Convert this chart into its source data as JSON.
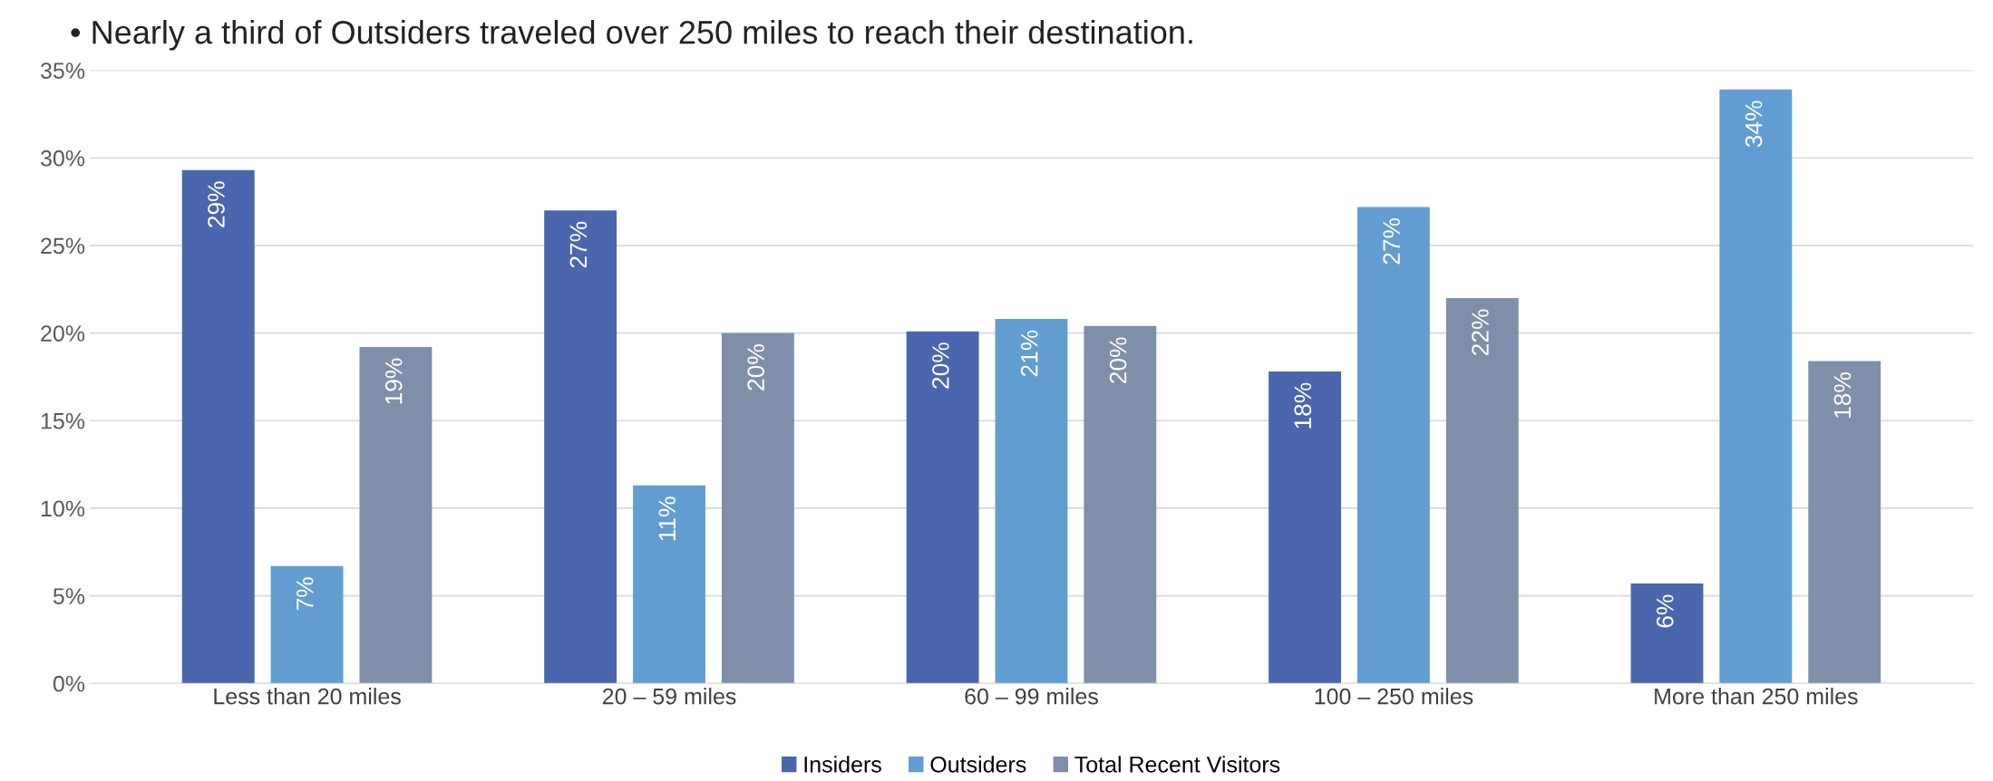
{
  "chart_data": {
    "type": "bar",
    "title": "• Nearly a third of Outsiders traveled over 250 miles to reach their destination.",
    "categories": [
      "Less than 20 miles",
      "20 – 59 miles",
      "60 – 99 miles",
      "100 – 250 miles",
      "More than 250 miles"
    ],
    "series": [
      {
        "name": "Insiders",
        "color": "#4a66ac",
        "values": [
          29.3,
          27.0,
          20.1,
          17.8,
          5.7
        ],
        "value_labels": [
          "29%",
          "27%",
          "20%",
          "18%",
          "6%"
        ]
      },
      {
        "name": "Outsiders",
        "color": "#629dd1",
        "values": [
          6.7,
          11.3,
          20.8,
          27.2,
          33.9
        ],
        "value_labels": [
          "7%",
          "11%",
          "21%",
          "27%",
          "34%"
        ]
      },
      {
        "name": "Total Recent Visitors",
        "color": "#7f8fa9",
        "values": [
          19.2,
          20.0,
          20.4,
          22.0,
          18.4
        ],
        "value_labels": [
          "19%",
          "20%",
          "20%",
          "22%",
          "18%"
        ]
      }
    ],
    "ylim": [
      0,
      35
    ],
    "yticks": [
      {
        "value": 0,
        "label": "0%"
      },
      {
        "value": 5,
        "label": "5%"
      },
      {
        "value": 10,
        "label": "10%"
      },
      {
        "value": 15,
        "label": "15%"
      },
      {
        "value": 20,
        "label": "20%"
      },
      {
        "value": 25,
        "label": "25%"
      },
      {
        "value": 30,
        "label": "30%"
      },
      {
        "value": 35,
        "label": "35%"
      }
    ],
    "grid": "y",
    "legend": "bottom"
  }
}
